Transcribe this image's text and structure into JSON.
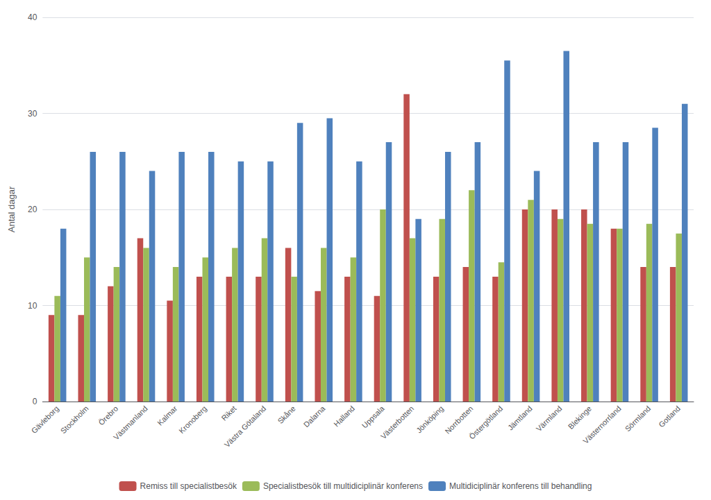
{
  "chart_data": {
    "type": "bar",
    "categories": [
      "Gävleborg",
      "Stockholm",
      "Örebro",
      "Västmanland",
      "Kalmar",
      "Kronoberg",
      "Riket",
      "Västra Götaland",
      "Skåne",
      "Dalarna",
      "Halland",
      "Uppsala",
      "Västerbotten",
      "Jönköping",
      "Norrbotten",
      "Östergötland",
      "Jämtland",
      "Värmland",
      "Blekinge",
      "Västernorrland",
      "Sörmland",
      "Gotland"
    ],
    "series": [
      {
        "name": "Remiss till specialistbesök",
        "color": "#C0504D",
        "values": [
          9,
          9,
          12,
          17,
          10.5,
          13,
          13,
          13,
          16,
          11.5,
          13,
          11,
          32,
          13,
          14,
          13,
          20,
          20,
          20,
          18,
          14,
          14
        ]
      },
      {
        "name": "Specialistbesök till multidiciplinär konferens",
        "color": "#9BBB59",
        "values": [
          11,
          15,
          14,
          16,
          14,
          15,
          16,
          17,
          13,
          16,
          15,
          20,
          17,
          19,
          22,
          14.5,
          21,
          19,
          18.5,
          18,
          18.5,
          17.5
        ]
      },
      {
        "name": "Multidiciplinär konferens till behandling",
        "color": "#4F81BD",
        "values": [
          18,
          26,
          26,
          24,
          26,
          26,
          25,
          25,
          29,
          29.5,
          25,
          27,
          19,
          26,
          27,
          35.5,
          24,
          36.5,
          27,
          27,
          28.5,
          31
        ]
      }
    ],
    "ylabel": "Antal dagar",
    "ylim": [
      0,
      40
    ],
    "yticks": [
      0,
      10,
      20,
      30,
      40
    ],
    "grid": true,
    "legend": "bottom"
  }
}
